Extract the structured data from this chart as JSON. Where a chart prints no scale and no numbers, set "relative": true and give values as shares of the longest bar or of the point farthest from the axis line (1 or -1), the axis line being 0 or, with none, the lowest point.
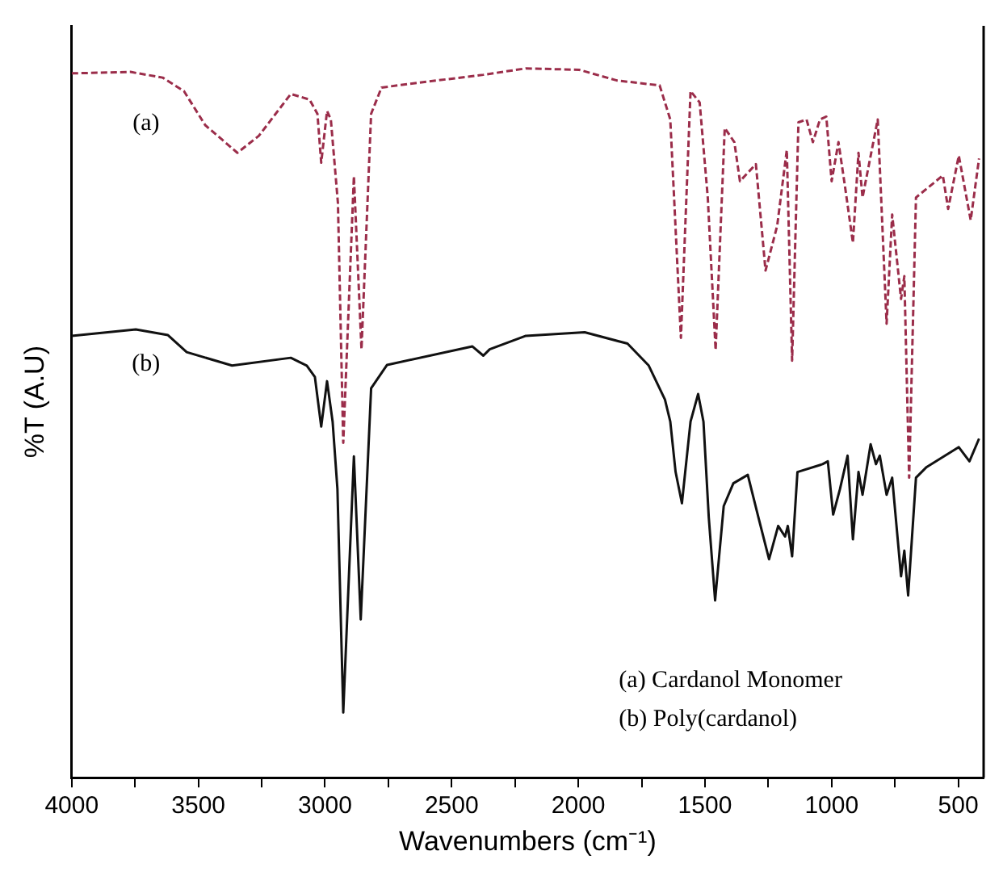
{
  "chart_data": {
    "type": "line",
    "xlabel": "Wavenumbers (cm⁻¹)",
    "ylabel": "%T (A.U)",
    "relative": true,
    "xlim": [
      4000,
      400
    ],
    "xticks": [
      4000,
      {
        "value": 3750,
        "label": null
      },
      3500,
      {
        "value": 3250,
        "label": null
      },
      3000,
      {
        "value": 2750,
        "label": null
      },
      2500,
      {
        "value": 2250,
        "label": null
      },
      2000,
      {
        "value": 1750,
        "label": null
      },
      1500,
      {
        "value": 1250,
        "label": null
      },
      1000,
      {
        "value": 750,
        "label": null
      },
      500
    ],
    "grid": false,
    "legend": false,
    "marker": "none",
    "series": [
      {
        "color": "#9b2d4a",
        "line_style": "dashed",
        "x": [
          4000,
          3768,
          3641,
          3557,
          3473,
          3346,
          3261,
          3135,
          3061,
          3030,
          3015,
          2992,
          2977,
          2949,
          2928,
          2886,
          2856,
          2818,
          2777,
          2671,
          2375,
          2207,
          1996,
          1848,
          1679,
          1637,
          1595,
          1557,
          1521,
          1489,
          1458,
          1422,
          1384,
          1362,
          1299,
          1261,
          1215,
          1177,
          1156,
          1131,
          1099,
          1074,
          1046,
          1021,
          1000,
          973,
          947,
          916,
          894,
          878,
          818,
          783,
          761,
          726,
          713,
          694,
          667,
          561,
          540,
          498,
          451,
          418
        ],
        "values": [
          0.993,
          0.995,
          0.987,
          0.968,
          0.92,
          0.881,
          0.905,
          0.964,
          0.956,
          0.936,
          0.867,
          0.94,
          0.928,
          0.81,
          0.472,
          0.848,
          0.604,
          0.936,
          0.973,
          0.978,
          0.991,
          1.0,
          0.998,
          0.983,
          0.976,
          0.928,
          0.62,
          0.968,
          0.952,
          0.818,
          0.603,
          0.916,
          0.896,
          0.841,
          0.865,
          0.715,
          0.778,
          0.885,
          0.588,
          0.924,
          0.928,
          0.896,
          0.928,
          0.932,
          0.841,
          0.896,
          0.833,
          0.754,
          0.881,
          0.818,
          0.928,
          0.64,
          0.794,
          0.675,
          0.707,
          0.423,
          0.818,
          0.849,
          0.802,
          0.877,
          0.786,
          0.873
        ]
      },
      {
        "color": "#111111",
        "line_style": "solid",
        "x": [
          4000,
          3747,
          3620,
          3546,
          3367,
          3135,
          3072,
          3040,
          3015,
          2992,
          2970,
          2951,
          2928,
          2886,
          2859,
          2818,
          2755,
          2418,
          2375,
          2350,
          2207,
          1975,
          1806,
          1722,
          1658,
          1637,
          1616,
          1591,
          1557,
          1527,
          1506,
          1485,
          1460,
          1426,
          1388,
          1331,
          1289,
          1247,
          1211,
          1184,
          1173,
          1156,
          1135,
          1036,
          1015,
          994,
          967,
          937,
          916,
          894,
          878,
          846,
          825,
          810,
          783,
          761,
          726,
          713,
          698,
          667,
          625,
          498,
          456,
          418
        ],
        "values": [
          0.623,
          0.632,
          0.624,
          0.6,
          0.581,
          0.592,
          0.581,
          0.565,
          0.495,
          0.559,
          0.502,
          0.407,
          0.092,
          0.453,
          0.223,
          0.549,
          0.582,
          0.608,
          0.595,
          0.604,
          0.623,
          0.628,
          0.612,
          0.581,
          0.533,
          0.502,
          0.431,
          0.387,
          0.502,
          0.541,
          0.502,
          0.367,
          0.25,
          0.383,
          0.415,
          0.427,
          0.367,
          0.308,
          0.355,
          0.34,
          0.355,
          0.312,
          0.431,
          0.442,
          0.446,
          0.371,
          0.407,
          0.454,
          0.336,
          0.431,
          0.399,
          0.47,
          0.442,
          0.454,
          0.399,
          0.423,
          0.284,
          0.32,
          0.257,
          0.423,
          0.438,
          0.466,
          0.446,
          0.478
        ]
      }
    ],
    "annotations": [
      "(a)",
      "(b)",
      "(a) Cardanol Monomer",
      "(b) Poly(cardanol)"
    ]
  }
}
